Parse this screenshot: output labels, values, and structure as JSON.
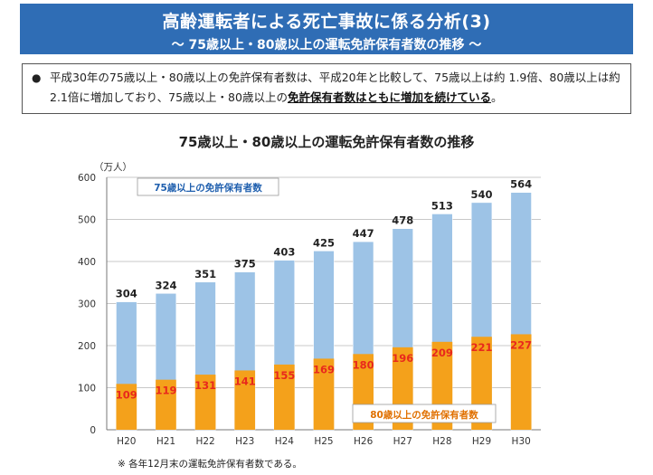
{
  "header": {
    "title": "高齢運転者による死亡事故に係る分析(3)",
    "subtitle": "～ 75歳以上・80歳以上の運転免許保有者数の推移 ～"
  },
  "note": {
    "bullet": "●",
    "text_a": "平成30年の75歳以上・80歳以上の免許保有者数は、平成20年と比較して、75歳以上は約 1.9倍、80歳以上は約 2.1倍に増加しており、75歳以上・80歳以上の",
    "text_emph": "免許保有者数はともに増加を続けている",
    "text_b": "。"
  },
  "footnote": "※ 各年12月末の運転免許保有者数である。",
  "chart_data": {
    "type": "bar",
    "title": "75歳以上・80歳以上の運転免許保有者数の推移",
    "unit_label": "（万人）",
    "categories": [
      "H20",
      "H21",
      "H22",
      "H23",
      "H24",
      "H25",
      "H26",
      "H27",
      "H28",
      "H29",
      "H30"
    ],
    "series": [
      {
        "name": "75歳以上の免許保有者数",
        "values": [
          304,
          324,
          351,
          375,
          403,
          425,
          447,
          478,
          513,
          540,
          564
        ],
        "color": "#9dc3e6"
      },
      {
        "name": "80歳以上の免許保有者数",
        "values": [
          109,
          119,
          131,
          141,
          155,
          169,
          180,
          196,
          209,
          221,
          227
        ],
        "color": "#f4a11b"
      }
    ],
    "ylim": [
      0,
      600
    ],
    "yticks": [
      0,
      100,
      200,
      300,
      400,
      500,
      600
    ],
    "grid": true,
    "label_colors": {
      "total": "#222222",
      "over80": "#e8291c"
    }
  }
}
